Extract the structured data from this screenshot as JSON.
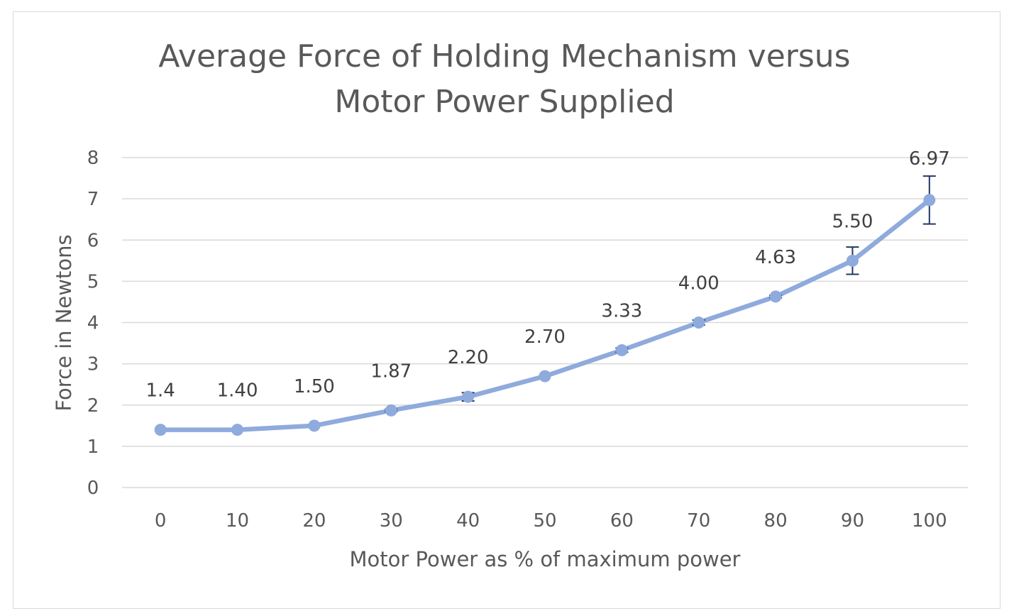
{
  "chart_data": {
    "type": "line",
    "title_lines": [
      "Average Force of Holding Mechanism versus",
      "Motor Power Supplied"
    ],
    "xlabel": "Motor Power as % of maximum power",
    "ylabel": "Force in Newtons",
    "categories": [
      "0",
      "10",
      "20",
      "30",
      "40",
      "50",
      "60",
      "70",
      "80",
      "90",
      "100"
    ],
    "x": [
      0,
      10,
      20,
      30,
      40,
      50,
      60,
      70,
      80,
      90,
      100
    ],
    "series": [
      {
        "values": [
          1.4,
          1.4,
          1.5,
          1.87,
          2.2,
          2.7,
          3.33,
          4.0,
          4.63,
          5.5,
          6.97
        ],
        "data_labels": [
          "1.4",
          "1.40",
          "1.50",
          "1.87",
          "2.20",
          "2.70",
          "3.33",
          "4.00",
          "4.63",
          "5.50",
          "6.97"
        ],
        "error": [
          0,
          0,
          0,
          0.03,
          0.1,
          0,
          0.05,
          0.06,
          0.03,
          0.33,
          0.58
        ],
        "color": "#8faadc"
      }
    ],
    "ylim": [
      0,
      8
    ],
    "yticks": [
      "0",
      "1",
      "2",
      "3",
      "4",
      "5",
      "6",
      "7",
      "8"
    ],
    "grid": true,
    "legend": "none",
    "error_bar_color": "#1f3864",
    "gridline_color": "#d9d9d9"
  }
}
